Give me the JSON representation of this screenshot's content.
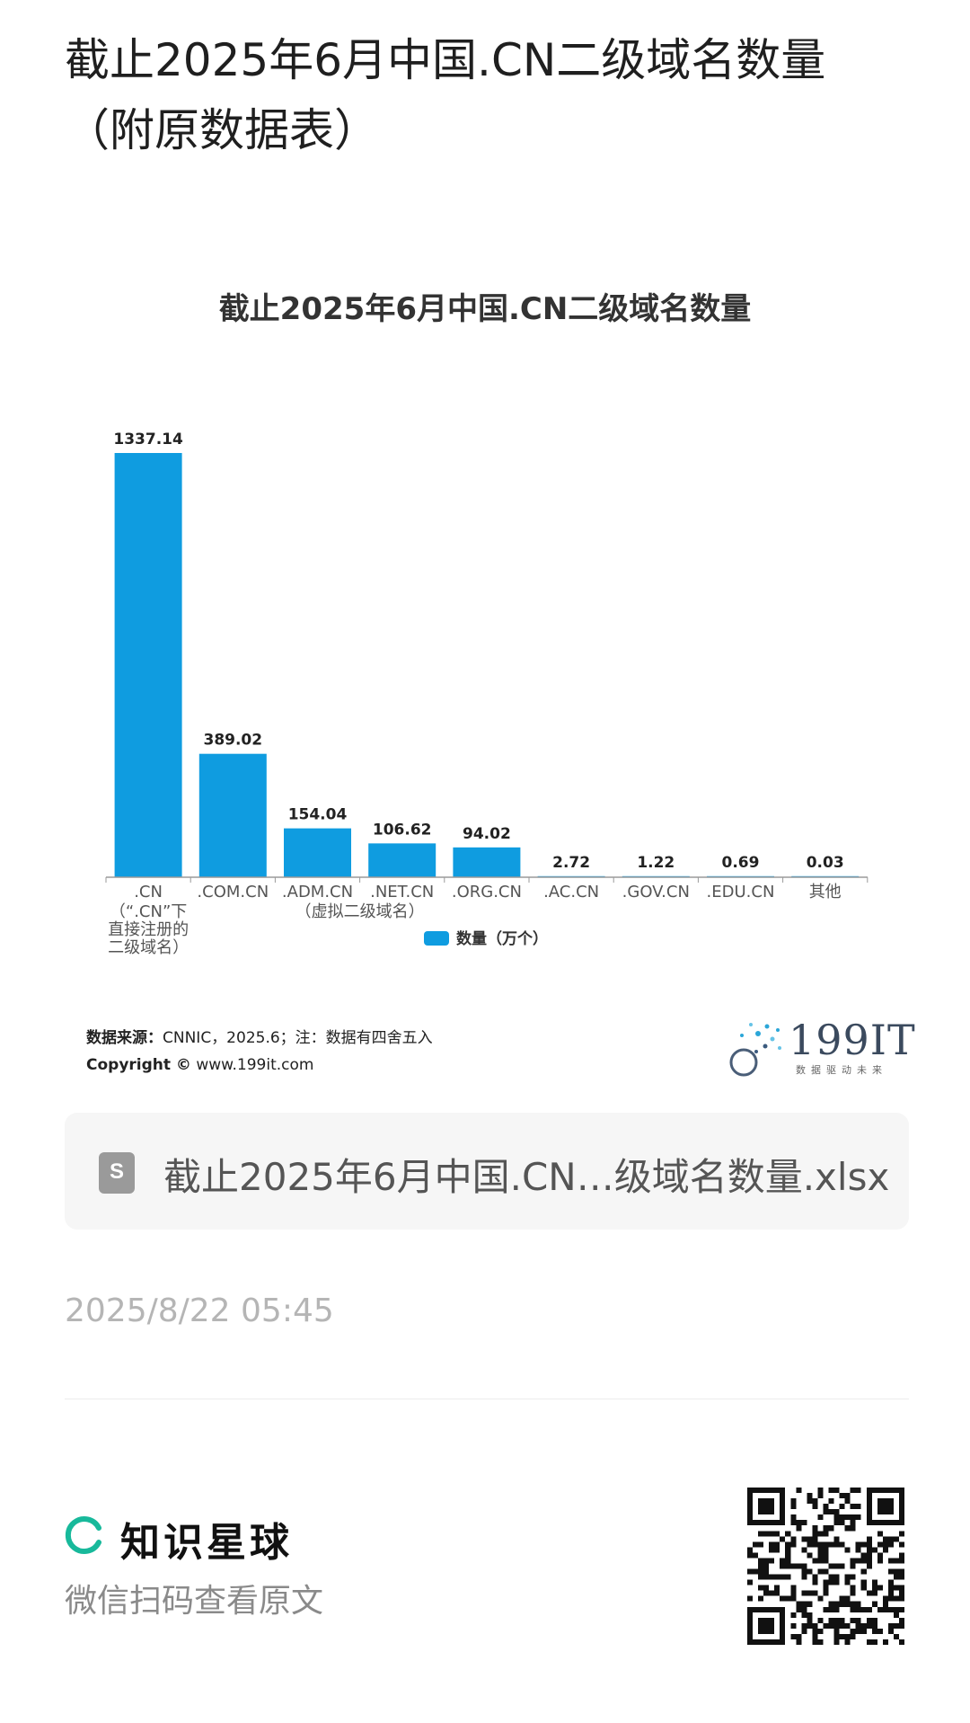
{
  "post": {
    "title": "截止2025年6月中国.CN二级域名数量（附原数据表）"
  },
  "chart_data": {
    "type": "bar",
    "title": "截止2025年6月中国.CN二级域名数量",
    "categories": [
      ".CN",
      ".COM.CN",
      ".ADM.CN",
      ".NET.CN",
      ".ORG.CN",
      ".AC.CN",
      ".GOV.CN",
      ".EDU.CN",
      "其他"
    ],
    "category_notes": [
      {
        "category": ".CN",
        "lines": [
          "（“.CN”下",
          "直接注册的",
          "二级域名）"
        ]
      },
      {
        "category": ".ADM.CN",
        "lines": [
          "（虚拟二级域名）"
        ]
      }
    ],
    "series": [
      {
        "name": "数量（万个）",
        "values": [
          1337.14,
          389.02,
          154.04,
          106.62,
          94.02,
          2.72,
          1.22,
          0.69,
          0.03
        ],
        "labels": [
          "1337.14",
          "389.02",
          "154.04",
          "106.62",
          "94.02",
          "2.72",
          "1.22",
          "0.69",
          "0.03"
        ]
      }
    ],
    "ylim": [
      0,
      1337.14
    ],
    "grid": false,
    "legend_position": "bottom",
    "bar_color": "#0f9ce0"
  },
  "source": {
    "label": "数据来源：",
    "text": "CNNIC，2025.6；注：数据有四舍五入",
    "copyright_label": "Copyright ©",
    "copyright_url": "www.199it.com"
  },
  "logo": {
    "text": "199IT",
    "tagline": "数据驱动未来",
    "icon": "dandelion-logo-icon"
  },
  "file": {
    "icon": "spreadsheet-icon",
    "name": "截止2025年6月中国.CN…级域名数量.xlsx"
  },
  "timestamp": "2025/8/22 05:45",
  "brand": {
    "name": "知识星球",
    "scan_text": "微信扫码查看原文",
    "accent_color": "#18b99b"
  }
}
